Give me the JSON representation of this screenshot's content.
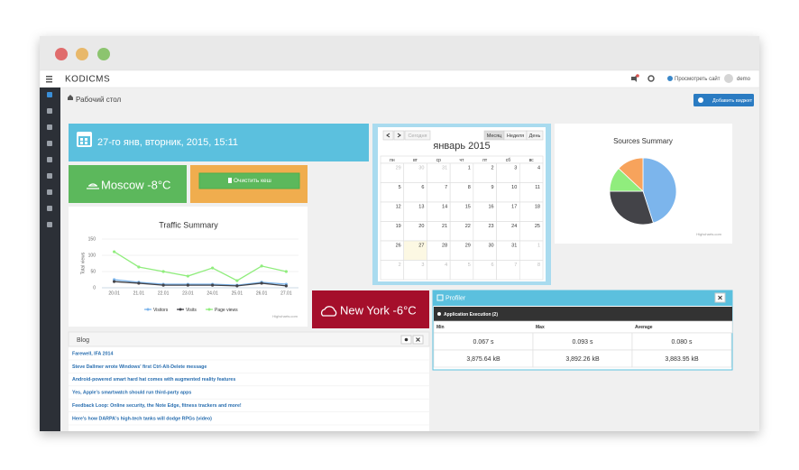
{
  "nav": {
    "brand": "KODICMS",
    "view_site": "Просмотреть сайт",
    "user": "demo"
  },
  "header": {
    "title": "Рабочий стол",
    "add_widget": "Добавить виджет"
  },
  "date_widget": {
    "text": "27-го янв, вторник, 2015, 15:11"
  },
  "weather": [
    "Moscow -8°C",
    "New York -6°C"
  ],
  "cache_button": "Очистить кеш",
  "calendar": {
    "today": "Сегодня",
    "views": [
      "Месяц",
      "Неделя",
      "День"
    ],
    "title": "январь 2015",
    "weekdays": [
      "пн",
      "вт",
      "ср",
      "чт",
      "пт",
      "сб",
      "вс"
    ],
    "weeks": [
      [
        29,
        30,
        31,
        1,
        2,
        3,
        4
      ],
      [
        5,
        6,
        7,
        8,
        9,
        10,
        11
      ],
      [
        12,
        13,
        14,
        15,
        16,
        17,
        18
      ],
      [
        19,
        20,
        21,
        22,
        23,
        24,
        25
      ],
      [
        26,
        27,
        28,
        29,
        30,
        31,
        1
      ],
      [
        2,
        3,
        4,
        5,
        6,
        7,
        8
      ]
    ]
  },
  "traffic_chart": {
    "type": "line",
    "title": "Traffic Summary",
    "y_label": "Total views",
    "categories": [
      "20.01",
      "21.01",
      "22.01",
      "23.01",
      "24.01",
      "25.01",
      "26.01",
      "27.01"
    ],
    "series": [
      {
        "name": "Visitors",
        "color": "#7cb5ec",
        "values": [
          25,
          17,
          11,
          11,
          11,
          8,
          17,
          11
        ]
      },
      {
        "name": "Visits",
        "color": "#434348",
        "values": [
          19,
          14,
          8,
          8,
          8,
          6,
          14,
          6
        ]
      },
      {
        "name": "Page views",
        "color": "#90ed7d",
        "values": [
          111,
          64,
          50,
          36,
          61,
          22,
          67,
          50
        ]
      }
    ],
    "ylim": [
      0,
      150
    ],
    "yticks": [
      0,
      50,
      100,
      150
    ],
    "grid": true,
    "credit": "Highcharts.com"
  },
  "sources_chart": {
    "type": "pie",
    "title": "Sources Summary",
    "values": [
      45,
      30,
      12,
      13
    ],
    "colors": [
      "#7cb5ec",
      "#434348",
      "#90ed7d",
      "#f7a35c"
    ],
    "credit": "Highcharts.com"
  },
  "profiler": {
    "title": "Profiler",
    "section": "Application Execution (2)",
    "columns": [
      "Min",
      "Max",
      "Average"
    ],
    "rows": [
      [
        "0.067 s",
        "0.093 s",
        "0.080 s"
      ],
      [
        "3,875.64 kB",
        "3,892.26 kB",
        "3,883.95 kB"
      ]
    ]
  },
  "blog": {
    "title": "Blog",
    "links": [
      "Farewell, IFA 2014",
      "Steve Dallmer wrote Windows' first Ctrl-Alt-Delete message",
      "Android-powered smart hard hat comes with augmented reality features",
      "Yes, Apple's smartwatch should run third-party apps",
      "Feedback Loop: Online security, the Note Edge, fitness trackers and more!",
      "Here's how DARPA's high-tech tanks will dodge RPGs (video)"
    ]
  }
}
